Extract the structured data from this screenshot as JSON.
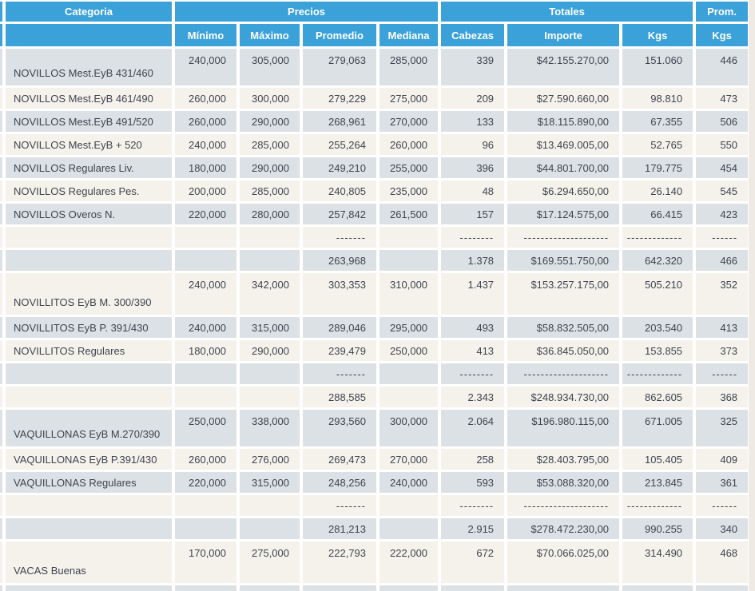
{
  "table": {
    "header_groups": [
      "Categoria",
      "Precios",
      "Totales",
      "Prom."
    ],
    "columns": [
      "",
      "Mínimo",
      "Máximo",
      "Promedio",
      "Mediana",
      "Cabezas",
      "Importe",
      "Kgs",
      "Kgs"
    ],
    "rows": [
      {
        "style": "tall",
        "category": "NOVILLOS Mest.EyB 431/460",
        "minimo": "240,000",
        "maximo": "305,000",
        "promedio": "279,063",
        "mediana": "285,000",
        "cabezas": "339",
        "importe": "$42.155.270,00",
        "kgs": "151.060",
        "prom_kgs": "446"
      },
      {
        "style": "normal",
        "category": "NOVILLOS Mest.EyB 461/490",
        "minimo": "260,000",
        "maximo": "300,000",
        "promedio": "279,229",
        "mediana": "275,000",
        "cabezas": "209",
        "importe": "$27.590.660,00",
        "kgs": "98.810",
        "prom_kgs": "473"
      },
      {
        "style": "normal",
        "category": "NOVILLOS Mest.EyB 491/520",
        "minimo": "260,000",
        "maximo": "290,000",
        "promedio": "268,961",
        "mediana": "270,000",
        "cabezas": "133",
        "importe": "$18.115.890,00",
        "kgs": "67.355",
        "prom_kgs": "506"
      },
      {
        "style": "normal",
        "category": "NOVILLOS Mest.EyB + 520",
        "minimo": "240,000",
        "maximo": "285,000",
        "promedio": "255,264",
        "mediana": "260,000",
        "cabezas": "96",
        "importe": "$13.469.005,00",
        "kgs": "52.765",
        "prom_kgs": "550"
      },
      {
        "style": "normal",
        "category": "NOVILLOS Regulares Liv.",
        "minimo": "180,000",
        "maximo": "290,000",
        "promedio": "249,210",
        "mediana": "255,000",
        "cabezas": "396",
        "importe": "$44.801.700,00",
        "kgs": "179.775",
        "prom_kgs": "454"
      },
      {
        "style": "normal",
        "category": "NOVILLOS Regulares Pes.",
        "minimo": "200,000",
        "maximo": "285,000",
        "promedio": "240,805",
        "mediana": "235,000",
        "cabezas": "48",
        "importe": "$6.294.650,00",
        "kgs": "26.140",
        "prom_kgs": "545"
      },
      {
        "style": "normal",
        "category": "NOVILLOS Overos N.",
        "minimo": "220,000",
        "maximo": "280,000",
        "promedio": "257,842",
        "mediana": "261,500",
        "cabezas": "157",
        "importe": "$17.124.575,00",
        "kgs": "66.415",
        "prom_kgs": "423"
      },
      {
        "style": "separator",
        "category": "",
        "minimo": "",
        "maximo": "",
        "promedio": "-------",
        "mediana": "",
        "cabezas": "--------",
        "importe": "--------------------",
        "kgs": "-------------",
        "prom_kgs": "------"
      },
      {
        "style": "subtotal",
        "category": "",
        "minimo": "",
        "maximo": "",
        "promedio": "263,968",
        "mediana": "",
        "cabezas": "1.378",
        "importe": "$169.551.750,00",
        "kgs": "642.320",
        "prom_kgs": "466"
      },
      {
        "style": "xtall",
        "category": "NOVILLITOS EyB M. 300/390",
        "minimo": "240,000",
        "maximo": "342,000",
        "promedio": "303,353",
        "mediana": "310,000",
        "cabezas": "1.437",
        "importe": "$153.257.175,00",
        "kgs": "505.210",
        "prom_kgs": "352"
      },
      {
        "style": "normal",
        "category": "NOVILLITOS EyB P. 391/430",
        "minimo": "240,000",
        "maximo": "315,000",
        "promedio": "289,046",
        "mediana": "295,000",
        "cabezas": "493",
        "importe": "$58.832.505,00",
        "kgs": "203.540",
        "prom_kgs": "413"
      },
      {
        "style": "normal",
        "category": "NOVILLITOS Regulares",
        "minimo": "180,000",
        "maximo": "290,000",
        "promedio": "239,479",
        "mediana": "250,000",
        "cabezas": "413",
        "importe": "$36.845.050,00",
        "kgs": "153.855",
        "prom_kgs": "373"
      },
      {
        "style": "separator",
        "category": "",
        "minimo": "",
        "maximo": "",
        "promedio": "-------",
        "mediana": "",
        "cabezas": "--------",
        "importe": "--------------------",
        "kgs": "-------------",
        "prom_kgs": "------"
      },
      {
        "style": "subtotal",
        "category": "",
        "minimo": "",
        "maximo": "",
        "promedio": "288,585",
        "mediana": "",
        "cabezas": "2.343",
        "importe": "$248.934.730,00",
        "kgs": "862.605",
        "prom_kgs": "368"
      },
      {
        "style": "tall",
        "category": "VAQUILLONAS EyB M.270/390",
        "minimo": "250,000",
        "maximo": "338,000",
        "promedio": "293,560",
        "mediana": "300,000",
        "cabezas": "2.064",
        "importe": "$196.980.115,00",
        "kgs": "671.005",
        "prom_kgs": "325"
      },
      {
        "style": "normal",
        "category": "VAQUILLONAS EyB P.391/430",
        "minimo": "260,000",
        "maximo": "276,000",
        "promedio": "269,473",
        "mediana": "270,000",
        "cabezas": "258",
        "importe": "$28.403.795,00",
        "kgs": "105.405",
        "prom_kgs": "409"
      },
      {
        "style": "normal",
        "category": "VAQUILLONAS Regulares",
        "minimo": "220,000",
        "maximo": "315,000",
        "promedio": "248,256",
        "mediana": "240,000",
        "cabezas": "593",
        "importe": "$53.088.320,00",
        "kgs": "213.845",
        "prom_kgs": "361"
      },
      {
        "style": "separator",
        "category": "",
        "minimo": "",
        "maximo": "",
        "promedio": "-------",
        "mediana": "",
        "cabezas": "--------",
        "importe": "--------------------",
        "kgs": "-------------",
        "prom_kgs": "------"
      },
      {
        "style": "subtotal",
        "category": "",
        "minimo": "",
        "maximo": "",
        "promedio": "281,213",
        "mediana": "",
        "cabezas": "2.915",
        "importe": "$278.472.230,00",
        "kgs": "990.255",
        "prom_kgs": "340"
      },
      {
        "style": "xtall",
        "category": "VACAS Buenas",
        "minimo": "170,000",
        "maximo": "275,000",
        "promedio": "222,793",
        "mediana": "222,000",
        "cabezas": "672",
        "importe": "$70.066.025,00",
        "kgs": "314.490",
        "prom_kgs": "468"
      },
      {
        "style": "partial",
        "category": "",
        "minimo": "",
        "maximo": "",
        "promedio": "",
        "mediana": "",
        "cabezas": "",
        "importe": "",
        "kgs": "",
        "prom_kgs": ""
      }
    ]
  },
  "colors": {
    "header_bg": "#3BA1D9",
    "header_text": "#FFFFFF",
    "row_alt_bg": "#DCE1E6",
    "row_base_bg": "#F5F2EC",
    "page_bg": "#EFEBE4",
    "table_gap": "#FFFFFF",
    "text": "#3E444D"
  }
}
